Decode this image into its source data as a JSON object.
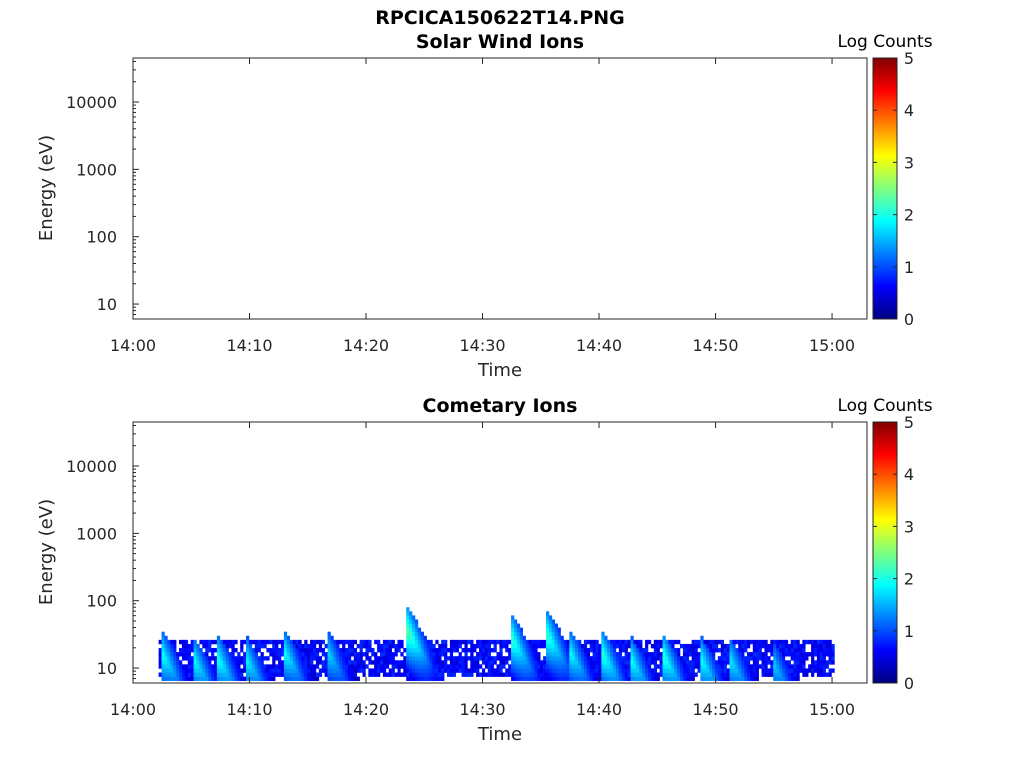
{
  "figure_title": "RPCICA150622T14.PNG",
  "colorbar_label": "Log Counts",
  "colormap": [
    "#00007f",
    "#0000ff",
    "#007fff",
    "#00ffff",
    "#7fff7f",
    "#ffff00",
    "#ff7f00",
    "#ff0000",
    "#7f0000"
  ],
  "chart_data": [
    {
      "type": "heatmap",
      "title": "Solar Wind Ions",
      "xlabel": "Time",
      "ylabel": "Energy (eV)",
      "x_ticks": [
        "14:00",
        "14:10",
        "14:20",
        "14:30",
        "14:40",
        "14:50",
        "15:00"
      ],
      "x_range_minutes": [
        0,
        63
      ],
      "y_scale": "log",
      "y_ticks": [
        "10",
        "100",
        "1000",
        "10000"
      ],
      "y_range": [
        6,
        45000
      ],
      "colorbar": {
        "label": "Log Counts",
        "range": [
          0,
          5
        ],
        "ticks": [
          "0",
          "1",
          "2",
          "3",
          "4",
          "5"
        ]
      },
      "cells": []
    },
    {
      "type": "heatmap",
      "title": "Cometary Ions",
      "xlabel": "Time",
      "ylabel": "Energy (eV)",
      "x_ticks": [
        "14:00",
        "14:10",
        "14:20",
        "14:30",
        "14:40",
        "14:50",
        "15:00"
      ],
      "x_range_minutes": [
        0,
        63
      ],
      "y_scale": "log",
      "y_ticks": [
        "10",
        "100",
        "1000",
        "10000"
      ],
      "y_range": [
        6,
        45000
      ],
      "colorbar": {
        "label": "Log Counts",
        "range": [
          0,
          5
        ],
        "ticks": [
          "0",
          "1",
          "2",
          "3",
          "4",
          "5"
        ]
      },
      "data_time_range_minutes": [
        2.2,
        60
      ],
      "bursts": [
        {
          "start_min": 2.4,
          "peak_log_counts": 2.0,
          "max_energy_eV": 35
        },
        {
          "start_min": 5.2,
          "peak_log_counts": 1.9,
          "max_energy_eV": 28
        },
        {
          "start_min": 7.2,
          "peak_log_counts": 2.0,
          "max_energy_eV": 30
        },
        {
          "start_min": 9.6,
          "peak_log_counts": 1.9,
          "max_energy_eV": 30
        },
        {
          "start_min": 12.8,
          "peak_log_counts": 2.0,
          "max_energy_eV": 40
        },
        {
          "start_min": 16.5,
          "peak_log_counts": 1.8,
          "max_energy_eV": 40
        },
        {
          "start_min": 23.4,
          "peak_log_counts": 2.4,
          "max_energy_eV": 80
        },
        {
          "start_min": 32.4,
          "peak_log_counts": 2.2,
          "max_energy_eV": 60
        },
        {
          "start_min": 35.4,
          "peak_log_counts": 2.2,
          "max_energy_eV": 70
        },
        {
          "start_min": 37.3,
          "peak_log_counts": 2.0,
          "max_energy_eV": 40
        },
        {
          "start_min": 40.2,
          "peak_log_counts": 2.1,
          "max_energy_eV": 35
        },
        {
          "start_min": 42.6,
          "peak_log_counts": 2.0,
          "max_energy_eV": 30
        },
        {
          "start_min": 45.3,
          "peak_log_counts": 2.2,
          "max_energy_eV": 35
        },
        {
          "start_min": 48.6,
          "peak_log_counts": 2.0,
          "max_energy_eV": 30
        },
        {
          "start_min": 51.2,
          "peak_log_counts": 1.8,
          "max_energy_eV": 28
        },
        {
          "start_min": 54.8,
          "peak_log_counts": 1.7,
          "max_energy_eV": 26
        }
      ],
      "background_band_eV": [
        8,
        25
      ],
      "background_log_counts": 0.7
    }
  ]
}
